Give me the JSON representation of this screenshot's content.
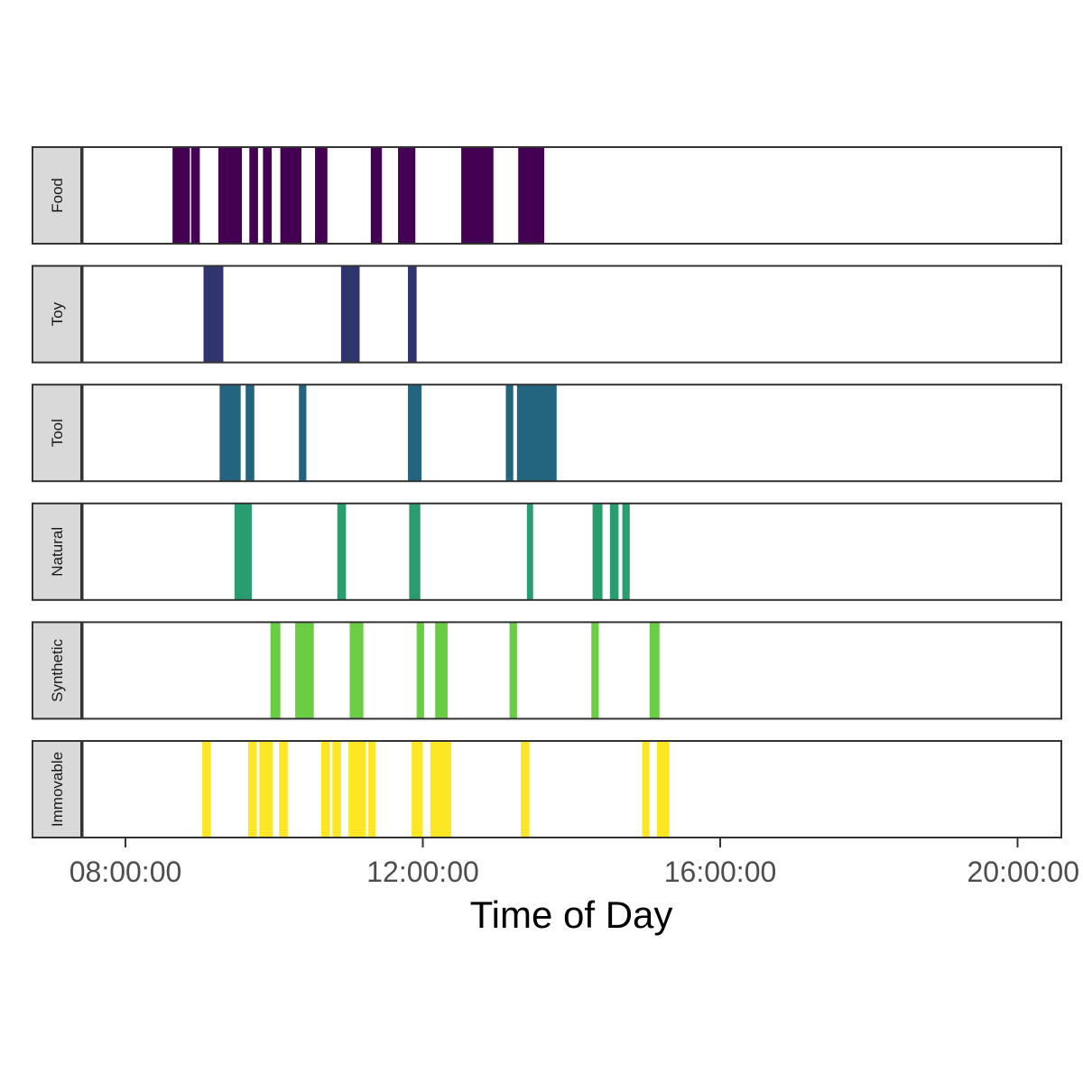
{
  "chart_data": {
    "type": "timeline",
    "xlabel": "Time of Day",
    "x_ticks": [
      "08:00:00",
      "12:00:00",
      "16:00:00",
      "20:00:00"
    ],
    "x_range": [
      "06:45:00",
      "20:35:00"
    ],
    "grid": false,
    "legend": "none",
    "panels": [
      {
        "name": "Food",
        "color": "#440154",
        "intervals": [
          [
            "08:38:00",
            "08:52:00"
          ],
          [
            "08:53:00",
            "09:00:00"
          ],
          [
            "09:15:00",
            "09:34:00"
          ],
          [
            "09:40:00",
            "09:47:00"
          ],
          [
            "09:51:00",
            "09:58:00"
          ],
          [
            "10:05:00",
            "10:22:00"
          ],
          [
            "10:33:00",
            "10:43:00"
          ],
          [
            "11:18:00",
            "11:27:00"
          ],
          [
            "11:40:00",
            "11:54:00"
          ],
          [
            "12:31:00",
            "12:57:00"
          ],
          [
            "13:17:00",
            "13:38:00"
          ]
        ]
      },
      {
        "name": "Toy",
        "color": "#31356e",
        "intervals": [
          [
            "09:03:00",
            "09:19:00"
          ],
          [
            "10:54:00",
            "11:09:00"
          ],
          [
            "11:48:00",
            "11:55:00"
          ]
        ]
      },
      {
        "name": "Tool",
        "color": "#23657e",
        "intervals": [
          [
            "09:16:00",
            "09:33:00"
          ],
          [
            "09:37:00",
            "09:44:00"
          ],
          [
            "10:20:00",
            "10:26:00"
          ],
          [
            "11:48:00",
            "11:59:00"
          ],
          [
            "13:07:00",
            "13:13:00"
          ],
          [
            "13:16:00",
            "13:48:00"
          ]
        ]
      },
      {
        "name": "Natural",
        "color": "#2a9d70",
        "intervals": [
          [
            "09:28:00",
            "09:42:00"
          ],
          [
            "10:51:00",
            "10:58:00"
          ],
          [
            "11:49:00",
            "11:58:00"
          ],
          [
            "13:24:00",
            "13:29:00"
          ],
          [
            "14:17:00",
            "14:25:00"
          ],
          [
            "14:31:00",
            "14:38:00"
          ],
          [
            "14:41:00",
            "14:47:00"
          ]
        ]
      },
      {
        "name": "Synthetic",
        "color": "#6bcd45",
        "intervals": [
          [
            "09:57:00",
            "10:05:00"
          ],
          [
            "10:17:00",
            "10:32:00"
          ],
          [
            "11:01:00",
            "11:12:00"
          ],
          [
            "11:55:00",
            "12:01:00"
          ],
          [
            "12:10:00",
            "12:20:00"
          ],
          [
            "13:10:00",
            "13:16:00"
          ],
          [
            "14:16:00",
            "14:22:00"
          ],
          [
            "15:03:00",
            "15:11:00"
          ]
        ]
      },
      {
        "name": "Immovable",
        "color": "#fde725",
        "intervals": [
          [
            "09:02:00",
            "09:09:00"
          ],
          [
            "09:39:00",
            "09:46:00"
          ],
          [
            "09:48:00",
            "09:59:00"
          ],
          [
            "10:04:00",
            "10:11:00"
          ],
          [
            "10:38:00",
            "10:45:00"
          ],
          [
            "10:47:00",
            "10:54:00"
          ],
          [
            "11:00:00",
            "11:14:00"
          ],
          [
            "11:16:00",
            "11:22:00"
          ],
          [
            "11:51:00",
            "12:00:00"
          ],
          [
            "12:06:00",
            "12:23:00"
          ],
          [
            "13:19:00",
            "13:26:00"
          ],
          [
            "14:57:00",
            "15:03:00"
          ],
          [
            "15:09:00",
            "15:19:00"
          ]
        ]
      }
    ]
  }
}
